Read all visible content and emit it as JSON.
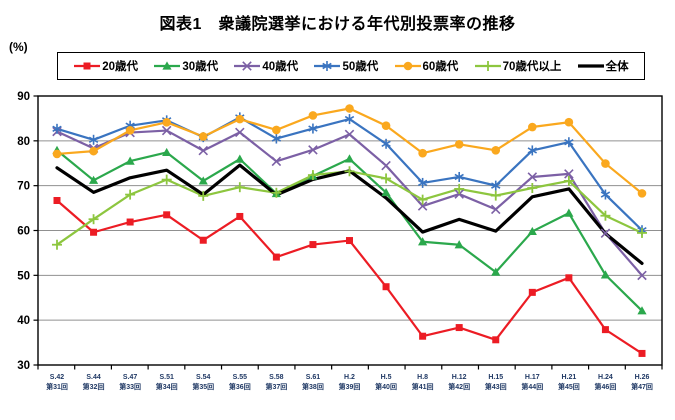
{
  "title": "図表1　衆議院選挙における年代別投票率の推移",
  "chart_data": {
    "type": "line",
    "title": "図表1　衆議院選挙における年代別投票率の推移",
    "xlabel": "",
    "ylabel": "(%)",
    "ylim": [
      30,
      90
    ],
    "ytick_step": 10,
    "yticks": [
      30,
      40,
      50,
      60,
      70,
      80,
      90
    ],
    "grid": true,
    "legend_position": "top",
    "grid_color": "#909090",
    "axis_color": "#000000",
    "tick_label_color": "#1F3864",
    "categories": [
      "S.42",
      "S.44",
      "S.47",
      "S.51",
      "S.54",
      "S.55",
      "S.58",
      "S.61",
      "H.2",
      "H.5",
      "H.8",
      "H.12",
      "H.15",
      "H.17",
      "H.21",
      "H.24",
      "H.26"
    ],
    "categories_line2": [
      "第31回",
      "第32回",
      "第33回",
      "第34回",
      "第35回",
      "第36回",
      "第37回",
      "第38回",
      "第39回",
      "第40回",
      "第41回",
      "第42回",
      "第43回",
      "第44回",
      "第45回",
      "第46回",
      "第47回"
    ],
    "series": [
      {
        "name": "20歳代",
        "color": "#EC1C24",
        "marker": "square",
        "line_width": 2.2,
        "values": [
          66.69,
          59.61,
          61.89,
          63.5,
          57.83,
          63.13,
          54.07,
          56.86,
          57.76,
          47.46,
          36.42,
          38.35,
          35.62,
          46.2,
          49.45,
          37.89,
          32.58
        ]
      },
      {
        "name": "30歳代",
        "color": "#2BA84C",
        "marker": "triangle",
        "line_width": 2.2,
        "values": [
          77.88,
          71.19,
          75.48,
          77.41,
          71.06,
          75.92,
          68.25,
          72.15,
          75.97,
          68.46,
          57.49,
          56.82,
          50.72,
          59.79,
          63.87,
          50.1,
          42.09
        ]
      },
      {
        "name": "40歳代",
        "color": "#7C60A5",
        "marker": "x",
        "line_width": 2.2,
        "values": [
          82.07,
          78.33,
          81.84,
          82.29,
          77.82,
          81.88,
          75.43,
          77.99,
          81.44,
          74.48,
          65.46,
          68.13,
          64.72,
          71.94,
          72.63,
          59.38,
          49.98
        ]
      },
      {
        "name": "50歳代",
        "color": "#3A74C0",
        "marker": "asterisk",
        "line_width": 2.2,
        "values": [
          82.68,
          80.23,
          83.38,
          84.57,
          80.82,
          85.23,
          80.51,
          82.74,
          84.85,
          79.34,
          70.61,
          71.94,
          70.01,
          77.86,
          79.69,
          68.02,
          60.07
        ]
      },
      {
        "name": "60歳代",
        "color": "#FAA81E",
        "marker": "circle",
        "line_width": 2.2,
        "values": [
          77.08,
          77.7,
          82.34,
          84.13,
          80.97,
          84.84,
          82.43,
          85.66,
          87.21,
          83.38,
          77.25,
          79.23,
          77.89,
          83.08,
          84.15,
          74.93,
          68.28
        ]
      },
      {
        "name": "70歳代以上",
        "color": "#8DC63F",
        "marker": "plus",
        "line_width": 2.2,
        "values": [
          56.83,
          62.52,
          68.01,
          71.35,
          67.72,
          69.66,
          68.41,
          72.36,
          73.21,
          71.61,
          66.88,
          69.28,
          67.78,
          69.48,
          71.06,
          63.3,
          59.46
        ]
      },
      {
        "name": "全体",
        "color": "#000000",
        "marker": "none",
        "line_width": 3.2,
        "values": [
          73.99,
          68.51,
          71.76,
          73.45,
          68.01,
          74.57,
          67.94,
          71.4,
          73.31,
          67.26,
          59.65,
          62.49,
          59.86,
          67.51,
          69.28,
          59.32,
          52.66
        ]
      }
    ]
  }
}
